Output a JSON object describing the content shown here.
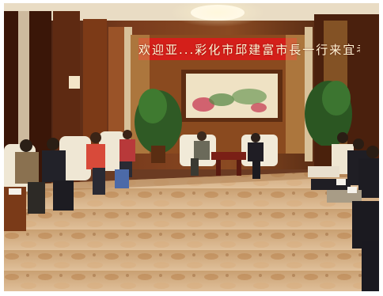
{
  "scene": {
    "banner_text": "欢迎亚...彩化市邱建富市長一行来宜考察"
  }
}
